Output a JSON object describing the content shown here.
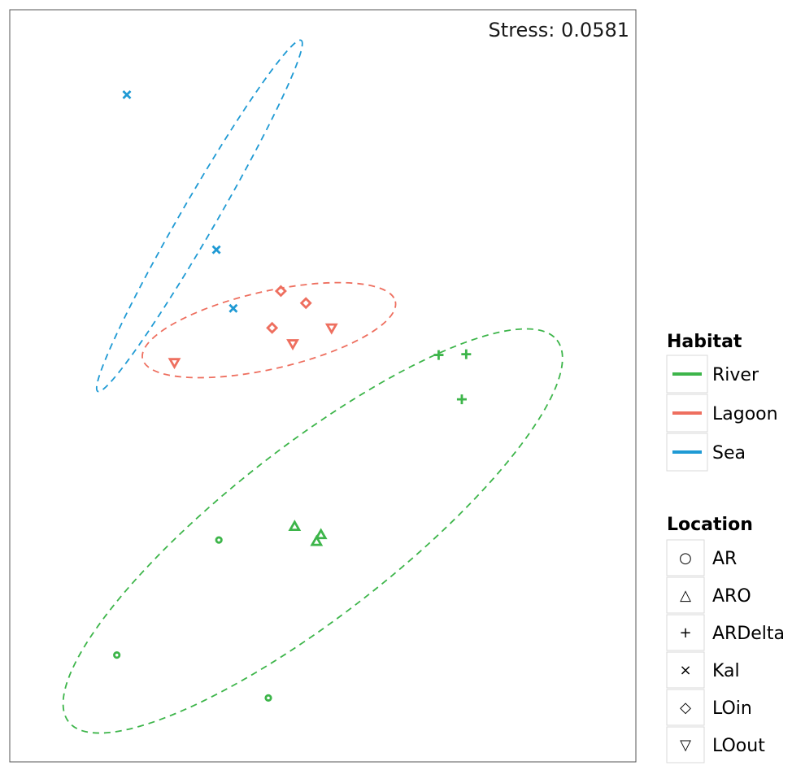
{
  "chart_data": {
    "type": "scatter",
    "stress_text": "Stress: 0.0581",
    "xlim": [
      0,
      1
    ],
    "ylim": [
      0,
      1
    ],
    "grid": false,
    "legend_position": "right",
    "habitat_legend": {
      "title": "Habitat",
      "entries": [
        {
          "name": "River",
          "color": "#3db54a"
        },
        {
          "name": "Lagoon",
          "color": "#ee6f5f"
        },
        {
          "name": "Sea",
          "color": "#1f9ad4"
        }
      ]
    },
    "location_legend": {
      "title": "Location",
      "entries": [
        {
          "name": "AR",
          "symbol": "○",
          "marker": "circle"
        },
        {
          "name": "ARO",
          "symbol": "△",
          "marker": "triangle-up"
        },
        {
          "name": "ARDelta",
          "symbol": "+",
          "marker": "plus"
        },
        {
          "name": "Kal",
          "symbol": "×",
          "marker": "cross"
        },
        {
          "name": "LOin",
          "symbol": "◇",
          "marker": "diamond"
        },
        {
          "name": "LOout",
          "symbol": "▽",
          "marker": "triangle-down"
        }
      ]
    },
    "series": [
      {
        "habitat": "River",
        "color": "#3db54a",
        "points": [
          {
            "location": "AR",
            "x": 0.334,
            "y": 0.295
          },
          {
            "location": "AR",
            "x": 0.171,
            "y": 0.142
          },
          {
            "location": "AR",
            "x": 0.413,
            "y": 0.085
          },
          {
            "location": "ARO",
            "x": 0.455,
            "y": 0.313
          },
          {
            "location": "ARO",
            "x": 0.497,
            "y": 0.302
          },
          {
            "location": "ARO",
            "x": 0.49,
            "y": 0.293
          },
          {
            "location": "ARDelta",
            "x": 0.685,
            "y": 0.541
          },
          {
            "location": "ARDelta",
            "x": 0.729,
            "y": 0.542
          },
          {
            "location": "ARDelta",
            "x": 0.722,
            "y": 0.482
          }
        ]
      },
      {
        "habitat": "Lagoon",
        "color": "#ee6f5f",
        "points": [
          {
            "location": "LOin",
            "x": 0.433,
            "y": 0.626
          },
          {
            "location": "LOin",
            "x": 0.473,
            "y": 0.61
          },
          {
            "location": "LOin",
            "x": 0.419,
            "y": 0.577
          },
          {
            "location": "LOout",
            "x": 0.514,
            "y": 0.577
          },
          {
            "location": "LOout",
            "x": 0.452,
            "y": 0.556
          },
          {
            "location": "LOout",
            "x": 0.263,
            "y": 0.531
          }
        ]
      },
      {
        "habitat": "Sea",
        "color": "#1f9ad4",
        "points": [
          {
            "location": "Kal",
            "x": 0.187,
            "y": 0.887
          },
          {
            "location": "Kal",
            "x": 0.33,
            "y": 0.681
          },
          {
            "location": "Kal",
            "x": 0.357,
            "y": 0.603
          }
        ]
      }
    ],
    "ellipses": [
      {
        "habitat": "River",
        "color": "#3db54a",
        "center": [
          0.484,
          0.307
        ],
        "rx": 0.495,
        "ry": 0.135,
        "rotation_deg": -38
      },
      {
        "habitat": "Lagoon",
        "color": "#ee6f5f",
        "center": [
          0.414,
          0.574
        ],
        "rx": 0.207,
        "ry": 0.062,
        "rotation_deg": -12.8
      },
      {
        "habitat": "Sea",
        "color": "#1f9ad4",
        "center": [
          0.303,
          0.726
        ],
        "rx": 0.324,
        "ry": 0.028,
        "rotation_deg": -59.9
      }
    ]
  }
}
